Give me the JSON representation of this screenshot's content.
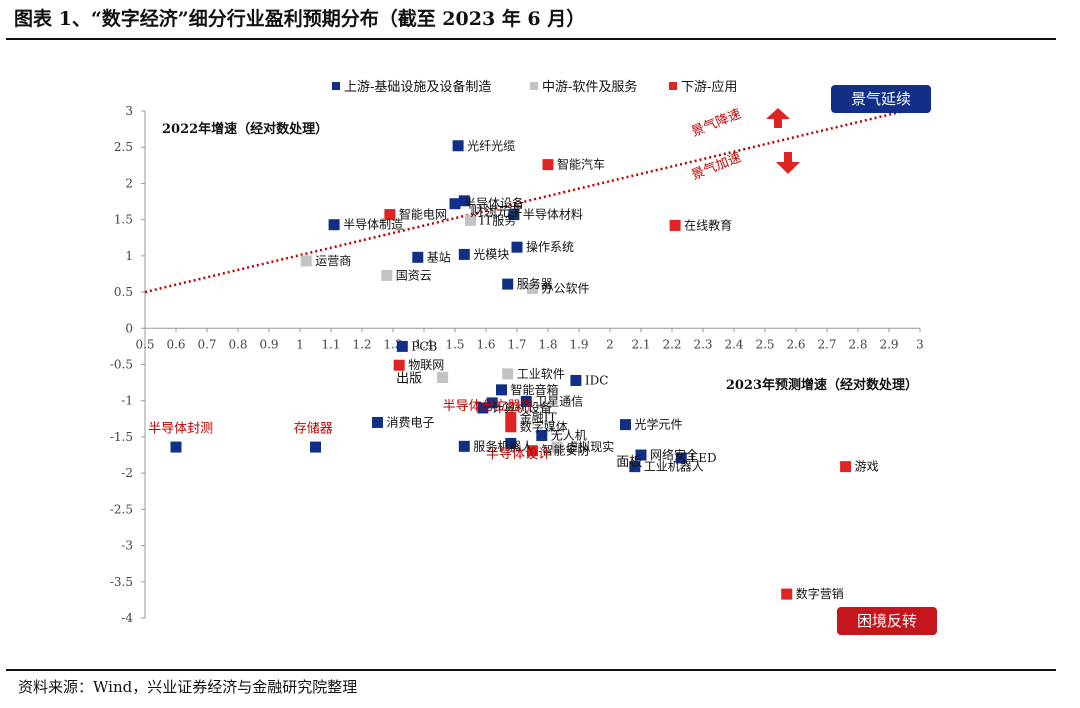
{
  "figure_title": "图表 1、“数字经济”细分行业盈利预期分布（截至 2023 年 6 月）",
  "source": "资料来源：Wind，兴业证券经济与金融研究院整理",
  "chart_data": {
    "type": "scatter",
    "ylabel": "2022年增速（经对数处理）",
    "xlabel": "2023年预测增速（经对数处理）",
    "xlim": [
      0.5,
      3
    ],
    "ylim": [
      -4,
      3
    ],
    "xticks": [
      "0.5",
      "0.6",
      "0.7",
      "0.8",
      "0.9",
      "1",
      "1.1",
      "1.2",
      "1.3",
      "1.4",
      "1.5",
      "1.6",
      "1.7",
      "1.8",
      "1.9",
      "2",
      "2.1",
      "2.2",
      "2.3",
      "2.4",
      "2.5",
      "2.6",
      "2.7",
      "2.8",
      "2.9",
      "3"
    ],
    "yticks": [
      "3",
      "2.5",
      "2",
      "1.5",
      "1",
      "0.5",
      "0",
      "-0.5",
      "-1",
      "-1.5",
      "-2",
      "-2.5",
      "-3",
      "-3.5",
      "-4"
    ],
    "grid": false,
    "legend_position": "top",
    "trend_line": {
      "from": [
        0.5,
        0.5
      ],
      "to": [
        2.95,
        3.0
      ],
      "color": "#c00000"
    },
    "series": [
      {
        "name": "上游-基础设施及设备制造",
        "color": "#112f87",
        "points": [
          {
            "x": 1.51,
            "y": 2.52,
            "label": "光纤光缆"
          },
          {
            "x": 1.5,
            "y": 1.72,
            "label": "半导体设备"
          },
          {
            "x": 1.53,
            "y": 1.76,
            "label": ""
          },
          {
            "x": 1.11,
            "y": 1.43,
            "label": "半导体制造"
          },
          {
            "x": 1.69,
            "y": 1.57,
            "label": "半导体材料"
          },
          {
            "x": 1.7,
            "y": 1.12,
            "label": "操作系统"
          },
          {
            "x": 1.38,
            "y": 0.98,
            "label": "基站"
          },
          {
            "x": 1.53,
            "y": 1.02,
            "label": "光模块"
          },
          {
            "x": 1.67,
            "y": 0.61,
            "label": "服务器"
          },
          {
            "x": 1.33,
            "y": -0.25,
            "label": "PCB"
          },
          {
            "x": 1.89,
            "y": -0.72,
            "label": "IDC"
          },
          {
            "x": 1.65,
            "y": -0.85,
            "label": "智能音箱"
          },
          {
            "x": 1.73,
            "y": -1.01,
            "label": "卫星通信"
          },
          {
            "x": 1.62,
            "y": -1.03,
            "label": ""
          },
          {
            "x": 1.59,
            "y": -1.1,
            "label": "计算机设备"
          },
          {
            "x": 1.25,
            "y": -1.3,
            "label": "消费电子"
          },
          {
            "x": 1.78,
            "y": -1.48,
            "label": "无人机"
          },
          {
            "x": 1.53,
            "y": -1.63,
            "label": "服务机器人"
          },
          {
            "x": 1.68,
            "y": -1.59,
            "label": ""
          },
          {
            "x": 2.05,
            "y": -1.33,
            "label": "光学元件"
          },
          {
            "x": 2.1,
            "y": -1.75,
            "label": "网络安全"
          },
          {
            "x": 2.08,
            "y": -1.91,
            "label": "工业机器人"
          },
          {
            "x": 2.23,
            "y": -1.79,
            "label": "LED"
          },
          {
            "x": 0.6,
            "y": -1.64,
            "label": ""
          },
          {
            "x": 1.05,
            "y": -1.64,
            "label": ""
          }
        ]
      },
      {
        "name": "中游-软件及服务",
        "color": "#c3c3c3",
        "points": [
          {
            "x": 1.02,
            "y": 0.93,
            "label": "运营商"
          },
          {
            "x": 1.28,
            "y": 0.73,
            "label": "国资云"
          },
          {
            "x": 1.55,
            "y": 1.49,
            "label": "IT服务"
          },
          {
            "x": 1.75,
            "y": 0.55,
            "label": "办公软件"
          },
          {
            "x": 1.67,
            "y": -0.63,
            "label": "工业软件"
          },
          {
            "x": 1.46,
            "y": -0.68,
            "label": ""
          },
          {
            "x": 1.83,
            "y": -1.64,
            "label": "虚拟现实"
          }
        ]
      },
      {
        "name": "下游-应用",
        "color": "#e02424",
        "points": [
          {
            "x": 1.8,
            "y": 2.26,
            "label": "智能汽车"
          },
          {
            "x": 1.29,
            "y": 1.57,
            "label": "智能电网"
          },
          {
            "x": 2.21,
            "y": 1.42,
            "label": "在线教育"
          },
          {
            "x": 1.32,
            "y": -0.51,
            "label": "物联网"
          },
          {
            "x": 1.68,
            "y": -1.23,
            "label": "金融IT"
          },
          {
            "x": 1.68,
            "y": -1.36,
            "label": "数字媒体"
          },
          {
            "x": 1.75,
            "y": -1.69,
            "label": "智能安防"
          },
          {
            "x": 2.76,
            "y": -1.91,
            "label": "游戏"
          },
          {
            "x": 2.57,
            "y": -3.67,
            "label": "数字营销"
          }
        ]
      }
    ],
    "annotations": [
      {
        "text": "景气降速",
        "x": 2.27,
        "y": 2.65,
        "color": "#c00000",
        "rotate": -22
      },
      {
        "text": "景气加速",
        "x": 2.27,
        "y": 2.05,
        "color": "#c00000",
        "rotate": -22
      },
      {
        "text": "财领元宇",
        "x": 1.55,
        "y": 1.55,
        "color": "#111111",
        "rotate": 0
      },
      {
        "text": "出版",
        "x": 1.31,
        "y": -0.75,
        "color": "#111111",
        "rotate": 0
      },
      {
        "text": "半导体封测",
        "x": 0.51,
        "y": -1.44,
        "color": "#c00000",
        "rotate": 0
      },
      {
        "text": "存储器",
        "x": 0.98,
        "y": -1.44,
        "color": "#c00000",
        "rotate": 0
      },
      {
        "text": "半导体分立器件",
        "x": 1.46,
        "y": -1.13,
        "color": "#c00000",
        "rotate": 0
      },
      {
        "text": "半导体设计",
        "x": 1.6,
        "y": -1.79,
        "color": "#c00000",
        "rotate": 0
      },
      {
        "text": "面板",
        "x": 2.02,
        "y": -1.9,
        "color": "#111111",
        "rotate": 0
      }
    ],
    "badges": [
      {
        "text": "景气延续",
        "color": "#112f87"
      },
      {
        "text": "困境反转",
        "color": "#c4161c"
      }
    ]
  }
}
